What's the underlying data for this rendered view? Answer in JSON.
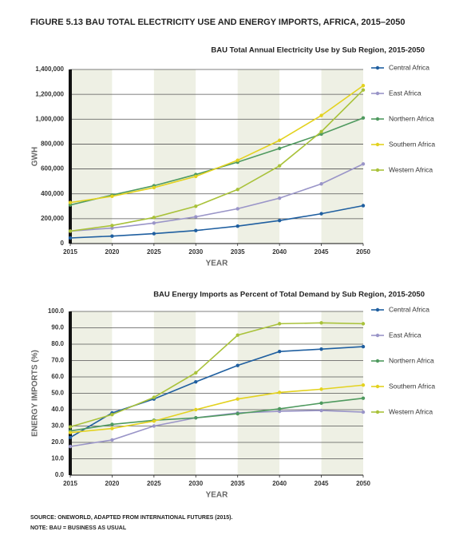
{
  "figure_title": "FIGURE 5.13   BAU TOTAL ELECTRICITY USE AND ENERGY IMPORTS, AFRICA, 2015–2050",
  "chart_data": [
    {
      "type": "line",
      "title": "BAU Total Annual Electricity Use by Sub Region, 2015-2050",
      "x_label": "YEAR",
      "y_label": "GWH",
      "x": [
        2015,
        2020,
        2025,
        2030,
        2035,
        2040,
        2045,
        2050
      ],
      "xlim": [
        2015,
        2050
      ],
      "xticks": [
        2015,
        2020,
        2025,
        2030,
        2035,
        2040,
        2045,
        2050
      ],
      "ylim": [
        0,
        1400000
      ],
      "yticks": [
        0,
        {
          "value": 200000,
          "label": "200,000"
        },
        {
          "value": 400000,
          "label": "400,000"
        },
        {
          "value": 600000,
          "label": "600,000"
        },
        {
          "value": 800000,
          "label": "800,000"
        },
        {
          "value": 1000000,
          "label": "1,000,000"
        },
        {
          "value": 1200000,
          "label": "1,200,000"
        },
        {
          "value": 1400000,
          "label": "1,400,000"
        }
      ],
      "grid": true,
      "series": [
        {
          "name": "Central Africa",
          "color": "#1f5fa0",
          "values": [
            45000,
            60000,
            80000,
            105000,
            140000,
            185000,
            240000,
            305000
          ]
        },
        {
          "name": "East Africa",
          "color": "#9a95c8",
          "values": [
            100000,
            125000,
            165000,
            215000,
            280000,
            365000,
            480000,
            640000
          ]
        },
        {
          "name": "Northern Africa",
          "color": "#4f9a5f",
          "values": [
            310000,
            390000,
            465000,
            555000,
            655000,
            765000,
            880000,
            1010000
          ]
        },
        {
          "name": "Southern Africa",
          "color": "#e3d21f",
          "values": [
            330000,
            380000,
            450000,
            540000,
            670000,
            830000,
            1030000,
            1270000
          ]
        },
        {
          "name": "Western Africa",
          "color": "#a9c23a",
          "values": [
            100000,
            145000,
            210000,
            300000,
            435000,
            625000,
            900000,
            1235000
          ]
        }
      ]
    },
    {
      "type": "line",
      "title": "BAU Energy Imports as Percent of Total Demand by Sub Region, 2015-2050",
      "x_label": "YEAR",
      "y_label": "ENERGY IMPORTS (%)",
      "x": [
        2015,
        2020,
        2025,
        2030,
        2035,
        2040,
        2045,
        2050
      ],
      "xlim": [
        2015,
        2050
      ],
      "xticks": [
        2015,
        2020,
        2025,
        2030,
        2035,
        2040,
        2045,
        2050
      ],
      "ylim": [
        0,
        100
      ],
      "yticks": [
        {
          "value": 0,
          "label": "0.0"
        },
        {
          "value": 10,
          "label": "10.0"
        },
        {
          "value": 20,
          "label": "20.0"
        },
        {
          "value": 30,
          "label": "30.0"
        },
        {
          "value": 40,
          "label": "40.0"
        },
        {
          "value": 50,
          "label": "50.0"
        },
        {
          "value": 60,
          "label": "60.0"
        },
        {
          "value": 70,
          "label": "70.0"
        },
        {
          "value": 80,
          "label": "80.0"
        },
        {
          "value": 90,
          "label": "90.0"
        },
        {
          "value": 100,
          "label": "100.0"
        }
      ],
      "grid": true,
      "series": [
        {
          "name": "Central Africa",
          "color": "#1f5fa0",
          "values": [
            23,
            38,
            46.5,
            57,
            67,
            75.5,
            77,
            78.5
          ]
        },
        {
          "name": "East Africa",
          "color": "#9a95c8",
          "values": [
            17.5,
            21.5,
            30,
            35,
            38,
            39,
            39.5,
            38.5
          ]
        },
        {
          "name": "Northern Africa",
          "color": "#4f9a5f",
          "values": [
            27,
            31,
            33.5,
            35,
            37.5,
            40.5,
            44,
            47
          ]
        },
        {
          "name": "Southern Africa",
          "color": "#e3d21f",
          "values": [
            26,
            28.5,
            33,
            40,
            46.5,
            50.5,
            52.5,
            55
          ]
        },
        {
          "name": "Western Africa",
          "color": "#a9c23a",
          "values": [
            29.5,
            37,
            47.5,
            62.5,
            85.5,
            92.5,
            93,
            92.5
          ]
        }
      ]
    }
  ],
  "source": "SOURCE: ONEWORLD, ADAPTED FROM INTERNATIONAL FUTURES (2015).",
  "note": "NOTE: BAU = BUSINESS AS USUAL"
}
